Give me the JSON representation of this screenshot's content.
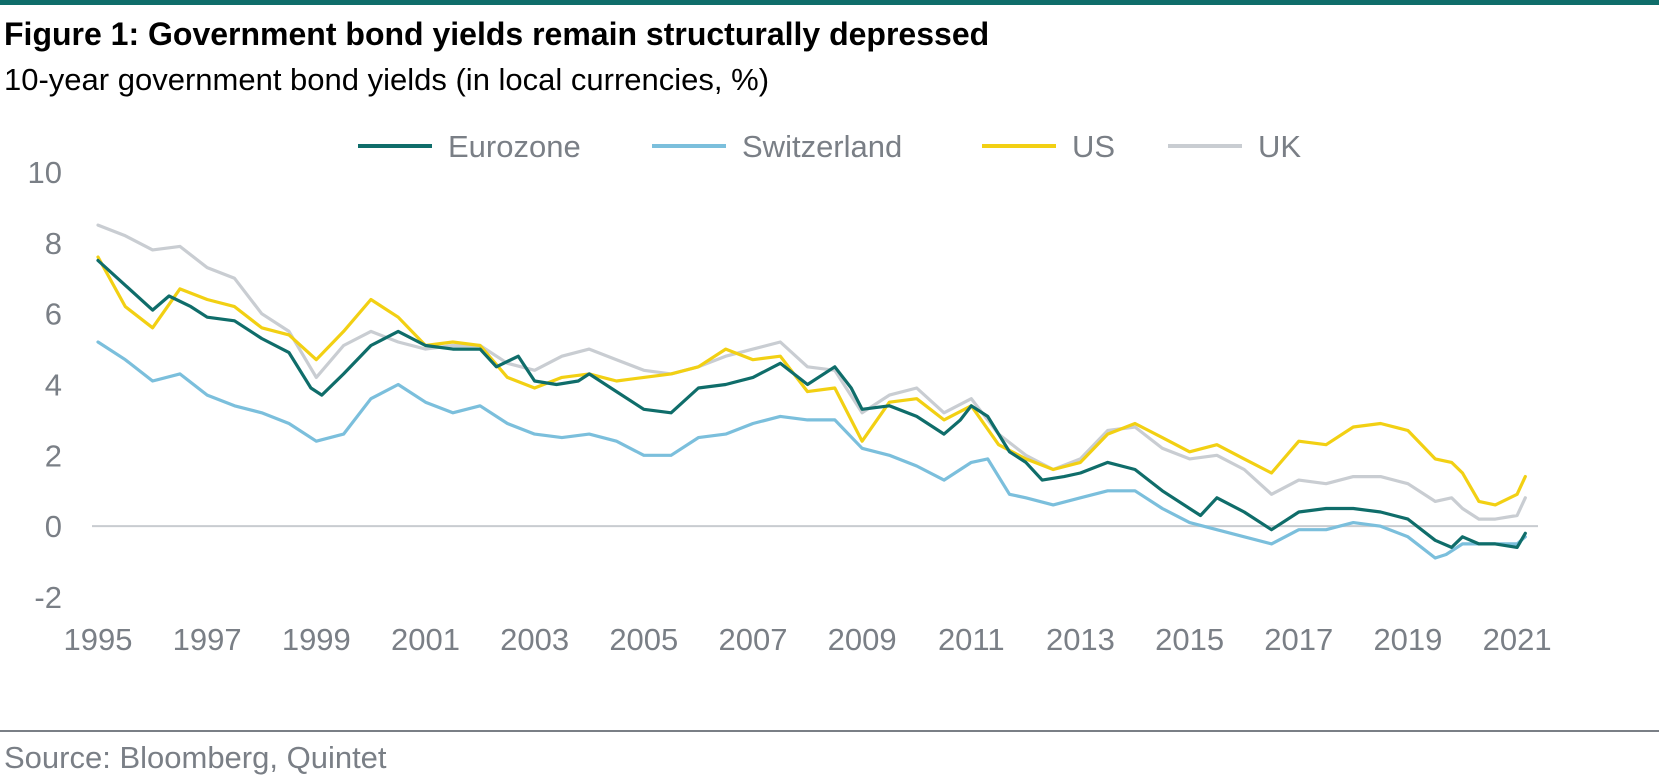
{
  "header": {
    "title": "Figure 1: Government bond yields remain structurally depressed",
    "subtitle": "10-year government bond yields (in local currencies, %)"
  },
  "footer": {
    "source": "Source: Bloomberg, Quintet"
  },
  "colors": {
    "rule": "#0f6d6a",
    "axis_text": "#7a7f86",
    "zero_line": "#c8ccd0"
  },
  "chart_data": {
    "type": "line",
    "title": "",
    "xlabel": "",
    "ylabel": "",
    "xlim": [
      1995,
      2021.2
    ],
    "ylim": [
      -2,
      10
    ],
    "yticks": [
      -2,
      0,
      2,
      4,
      6,
      8,
      10
    ],
    "xticks": [
      1995,
      1997,
      1999,
      2001,
      2003,
      2005,
      2007,
      2009,
      2011,
      2013,
      2015,
      2017,
      2019,
      2021
    ],
    "grid": false,
    "legend": "top-center",
    "series": [
      {
        "name": "Eurozone",
        "color": "#0f6d6a",
        "x": [
          1995,
          1995.5,
          1996,
          1996.3,
          1996.7,
          1997,
          1997.5,
          1998,
          1998.5,
          1998.9,
          1999.1,
          1999.5,
          2000,
          2000.5,
          2001,
          2001.5,
          2002,
          2002.3,
          2002.7,
          2003,
          2003.4,
          2003.8,
          2004,
          2004.5,
          2005,
          2005.5,
          2006,
          2006.5,
          2007,
          2007.5,
          2008,
          2008.5,
          2008.8,
          2009,
          2009.5,
          2010,
          2010.5,
          2010.8,
          2011,
          2011.3,
          2011.7,
          2012,
          2012.3,
          2012.7,
          2013,
          2013.5,
          2014,
          2014.5,
          2015,
          2015.2,
          2015.5,
          2016,
          2016.5,
          2017,
          2017.5,
          2018,
          2018.5,
          2019,
          2019.5,
          2019.8,
          2020,
          2020.3,
          2020.6,
          2021,
          2021.15
        ],
        "y": [
          7.5,
          6.8,
          6.1,
          6.5,
          6.2,
          5.9,
          5.8,
          5.3,
          4.9,
          3.9,
          3.7,
          4.3,
          5.1,
          5.5,
          5.1,
          5.0,
          5.0,
          4.5,
          4.8,
          4.1,
          4.0,
          4.1,
          4.3,
          3.8,
          3.3,
          3.2,
          3.9,
          4.0,
          4.2,
          4.6,
          4.0,
          4.5,
          3.9,
          3.3,
          3.4,
          3.1,
          2.6,
          3.0,
          3.4,
          3.1,
          2.1,
          1.8,
          1.3,
          1.4,
          1.5,
          1.8,
          1.6,
          1.0,
          0.5,
          0.3,
          0.8,
          0.4,
          -0.1,
          0.4,
          0.5,
          0.5,
          0.4,
          0.2,
          -0.4,
          -0.6,
          -0.3,
          -0.5,
          -0.5,
          -0.6,
          -0.2
        ]
      },
      {
        "name": "Switzerland",
        "color": "#7bbfdc",
        "x": [
          1995,
          1995.5,
          1996,
          1996.5,
          1997,
          1997.5,
          1998,
          1998.5,
          1999,
          1999.5,
          2000,
          2000.5,
          2001,
          2001.5,
          2002,
          2002.5,
          2003,
          2003.5,
          2004,
          2004.5,
          2005,
          2005.5,
          2006,
          2006.5,
          2007,
          2007.5,
          2008,
          2008.5,
          2009,
          2009.5,
          2010,
          2010.5,
          2011,
          2011.3,
          2011.7,
          2012,
          2012.5,
          2013,
          2013.5,
          2014,
          2014.5,
          2015,
          2015.5,
          2016,
          2016.5,
          2017,
          2017.5,
          2018,
          2018.5,
          2019,
          2019.5,
          2019.7,
          2020,
          2020.5,
          2021,
          2021.15
        ],
        "y": [
          5.2,
          4.7,
          4.1,
          4.3,
          3.7,
          3.4,
          3.2,
          2.9,
          2.4,
          2.6,
          3.6,
          4.0,
          3.5,
          3.2,
          3.4,
          2.9,
          2.6,
          2.5,
          2.6,
          2.4,
          2.0,
          2.0,
          2.5,
          2.6,
          2.9,
          3.1,
          3.0,
          3.0,
          2.2,
          2.0,
          1.7,
          1.3,
          1.8,
          1.9,
          0.9,
          0.8,
          0.6,
          0.8,
          1.0,
          1.0,
          0.5,
          0.1,
          -0.1,
          -0.3,
          -0.5,
          -0.1,
          -0.1,
          0.1,
          0.0,
          -0.3,
          -0.9,
          -0.8,
          -0.5,
          -0.5,
          -0.5,
          -0.3
        ]
      },
      {
        "name": "US",
        "color": "#f2d013",
        "x": [
          1995,
          1995.5,
          1996,
          1996.5,
          1997,
          1997.5,
          1998,
          1998.5,
          1999,
          1999.5,
          2000,
          2000.5,
          2001,
          2001.5,
          2002,
          2002.5,
          2003,
          2003.5,
          2004,
          2004.5,
          2005,
          2005.5,
          2006,
          2006.5,
          2007,
          2007.5,
          2008,
          2008.5,
          2009,
          2009.5,
          2010,
          2010.5,
          2011,
          2011.5,
          2012,
          2012.5,
          2013,
          2013.5,
          2014,
          2014.5,
          2015,
          2015.5,
          2016,
          2016.5,
          2017,
          2017.5,
          2018,
          2018.5,
          2019,
          2019.5,
          2019.8,
          2020,
          2020.3,
          2020.6,
          2021,
          2021.15
        ],
        "y": [
          7.6,
          6.2,
          5.6,
          6.7,
          6.4,
          6.2,
          5.6,
          5.4,
          4.7,
          5.5,
          6.4,
          5.9,
          5.1,
          5.2,
          5.1,
          4.2,
          3.9,
          4.2,
          4.3,
          4.1,
          4.2,
          4.3,
          4.5,
          5.0,
          4.7,
          4.8,
          3.8,
          3.9,
          2.4,
          3.5,
          3.6,
          3.0,
          3.4,
          2.3,
          1.9,
          1.6,
          1.8,
          2.6,
          2.9,
          2.5,
          2.1,
          2.3,
          1.9,
          1.5,
          2.4,
          2.3,
          2.8,
          2.9,
          2.7,
          1.9,
          1.8,
          1.5,
          0.7,
          0.6,
          0.9,
          1.4
        ]
      },
      {
        "name": "UK",
        "color": "#c9cdd2",
        "x": [
          1995,
          1995.5,
          1996,
          1996.5,
          1997,
          1997.5,
          1998,
          1998.5,
          1999,
          1999.5,
          2000,
          2000.5,
          2001,
          2001.5,
          2002,
          2002.5,
          2003,
          2003.5,
          2004,
          2004.5,
          2005,
          2005.5,
          2006,
          2006.5,
          2007,
          2007.5,
          2008,
          2008.5,
          2009,
          2009.5,
          2010,
          2010.5,
          2011,
          2011.5,
          2012,
          2012.5,
          2013,
          2013.5,
          2014,
          2014.5,
          2015,
          2015.5,
          2016,
          2016.5,
          2017,
          2017.5,
          2018,
          2018.5,
          2019,
          2019.5,
          2019.8,
          2020,
          2020.3,
          2020.6,
          2021,
          2021.15
        ],
        "y": [
          8.5,
          8.2,
          7.8,
          7.9,
          7.3,
          7.0,
          6.0,
          5.5,
          4.2,
          5.1,
          5.5,
          5.2,
          5.0,
          5.1,
          5.1,
          4.6,
          4.4,
          4.8,
          5.0,
          4.7,
          4.4,
          4.3,
          4.5,
          4.8,
          5.0,
          5.2,
          4.5,
          4.4,
          3.2,
          3.7,
          3.9,
          3.2,
          3.6,
          2.6,
          2.0,
          1.6,
          1.9,
          2.7,
          2.8,
          2.2,
          1.9,
          2.0,
          1.6,
          0.9,
          1.3,
          1.2,
          1.4,
          1.4,
          1.2,
          0.7,
          0.8,
          0.5,
          0.2,
          0.2,
          0.3,
          0.8
        ]
      }
    ]
  }
}
